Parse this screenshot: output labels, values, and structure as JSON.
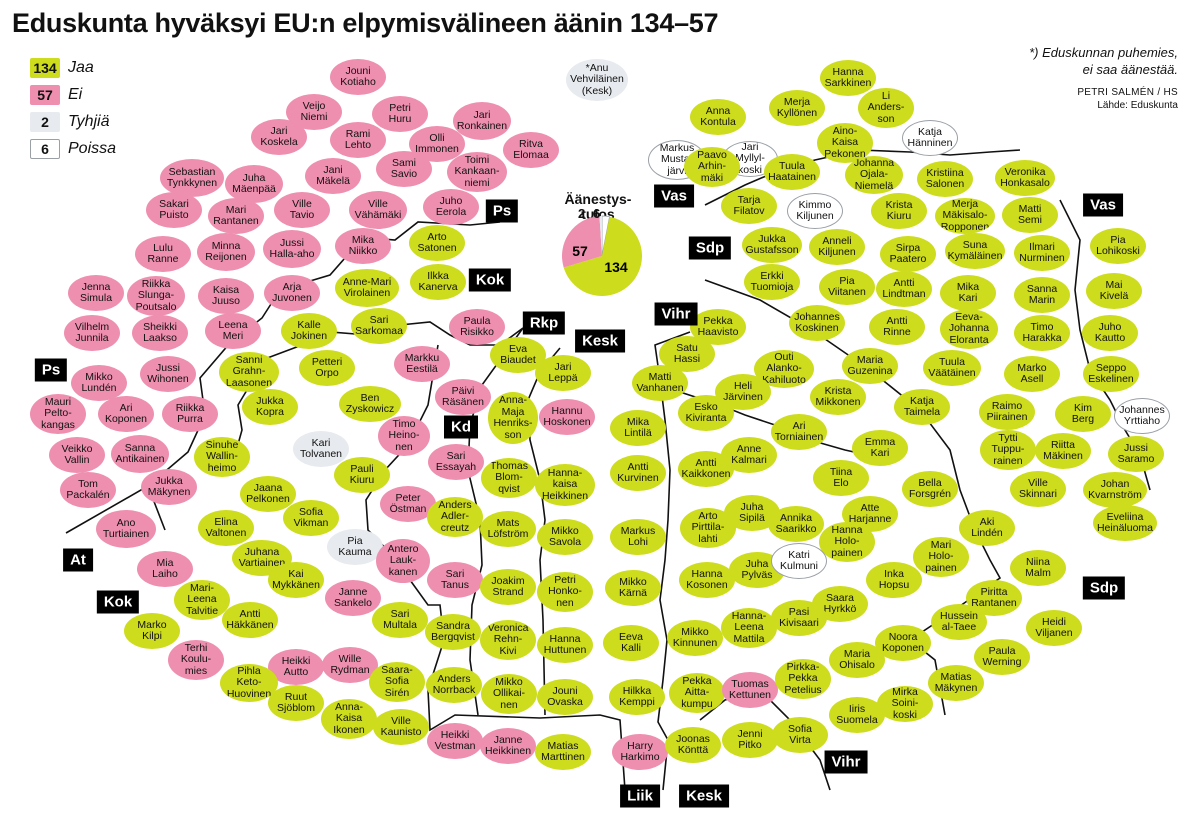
{
  "title": "Eduskunta hyväksyi EU:n elpymisvälineen äänin 134–57",
  "legend": [
    {
      "count": "134",
      "label": "Jaa",
      "type": "jaa"
    },
    {
      "count": "57",
      "label": "Ei",
      "type": "ei"
    },
    {
      "count": "2",
      "label": "Tyhjiä",
      "type": "tyhja"
    },
    {
      "count": "6",
      "label": "Poissa",
      "type": "poissa"
    }
  ],
  "note": "*) Eduskunnan puhemies,\nei saa äänestää.",
  "credit": {
    "author": "PETRI SALMÉN / HS",
    "source": "Lähde: Eduskunta"
  },
  "colors": {
    "jaa": "#cddc1c",
    "ei": "#ee8fb0",
    "tyhja": "#e7eaee",
    "poissa": "#ffffff"
  },
  "results": {
    "label": "Äänestys-\ntulos",
    "jaa": 134,
    "ei": 57,
    "tyhja": 2,
    "poissa": 6,
    "jaa_label": "134",
    "ei_label": "57",
    "tyhja_label": "2",
    "poissa_label": "6"
  },
  "parties": [
    "Ps",
    "Kok",
    "Rkp",
    "Kesk",
    "Vihr",
    "Vas",
    "Sdp",
    "Kd",
    "At",
    "Kok",
    "Liik",
    "Kesk",
    "Vihr",
    "Sdp",
    "Vas",
    "Ps"
  ],
  "seats": [
    {
      "name": "*Anu\nVehviläinen\n(Kesk)",
      "vote": "tyhja"
    },
    {
      "name": "Jouni\nKotiaho",
      "vote": "ei"
    },
    {
      "name": "Veijo\nNiemi",
      "vote": "ei"
    },
    {
      "name": "Petri\nHuru",
      "vote": "ei"
    },
    {
      "name": "Jari\nRonkainen",
      "vote": "ei"
    },
    {
      "name": "Jari\nKoskela",
      "vote": "ei"
    },
    {
      "name": "Rami\nLehto",
      "vote": "ei"
    },
    {
      "name": "Olli\nImmonen",
      "vote": "ei"
    },
    {
      "name": "Ritva\nElomaa",
      "vote": "ei"
    },
    {
      "name": "Juha\nMäenpää",
      "vote": "ei"
    },
    {
      "name": "Jani\nMäkelä",
      "vote": "ei"
    },
    {
      "name": "Sami\nSavio",
      "vote": "ei"
    },
    {
      "name": "Toimi\nKankaan-\nniemi",
      "vote": "ei"
    },
    {
      "name": "Sebastian\nTynkkynen",
      "vote": "ei"
    },
    {
      "name": "Sakari\nPuisto",
      "vote": "ei"
    },
    {
      "name": "Mari\nRantanen",
      "vote": "ei"
    },
    {
      "name": "Ville\nTavio",
      "vote": "ei"
    },
    {
      "name": "Ville\nVähämäki",
      "vote": "ei"
    },
    {
      "name": "Juho\nEerola",
      "vote": "ei"
    },
    {
      "name": "Lulu\nRanne",
      "vote": "ei"
    },
    {
      "name": "Minna\nReijonen",
      "vote": "ei"
    },
    {
      "name": "Jussi\nHalla-aho",
      "vote": "ei"
    },
    {
      "name": "Mika\nNiikko",
      "vote": "ei"
    },
    {
      "name": "Arto\nSatonen",
      "vote": "jaa"
    },
    {
      "name": "Jenna\nSimula",
      "vote": "ei"
    },
    {
      "name": "Riikka\nSlunga-\nPoutsalo",
      "vote": "ei"
    },
    {
      "name": "Kaisa\nJuuso",
      "vote": "ei"
    },
    {
      "name": "Arja\nJuvonen",
      "vote": "ei"
    },
    {
      "name": "Anne-Mari\nVirolainen",
      "vote": "jaa"
    },
    {
      "name": "Ilkka\nKanerva",
      "vote": "jaa"
    },
    {
      "name": "Vilhelm\nJunnila",
      "vote": "ei"
    },
    {
      "name": "Sheikki\nLaakso",
      "vote": "ei"
    },
    {
      "name": "Leena\nMeri",
      "vote": "ei"
    },
    {
      "name": "Kalle\nJokinen",
      "vote": "jaa"
    },
    {
      "name": "Sari\nSarkomaa",
      "vote": "jaa"
    },
    {
      "name": "Paula\nRisikko",
      "vote": "ei"
    },
    {
      "name": "Mikko\nLundén",
      "vote": "ei"
    },
    {
      "name": "Jussi\nWihonen",
      "vote": "ei"
    },
    {
      "name": "Sanni\nGrahn-\nLaasonen",
      "vote": "jaa"
    },
    {
      "name": "Petteri\nOrpo",
      "vote": "jaa"
    },
    {
      "name": "Markku\nEestilä",
      "vote": "ei"
    },
    {
      "name": "Eva\nBiaudet",
      "vote": "jaa"
    },
    {
      "name": "Mauri\nPelto-\nkangas",
      "vote": "ei"
    },
    {
      "name": "Ari\nKoponen",
      "vote": "ei"
    },
    {
      "name": "Riikka\nPurra",
      "vote": "ei"
    },
    {
      "name": "Jukka\nKopra",
      "vote": "jaa"
    },
    {
      "name": "Ben\nZyskowicz",
      "vote": "jaa"
    },
    {
      "name": "Päivi\nRäsänen",
      "vote": "ei"
    },
    {
      "name": "Anna-\nMaja\nHenriks-\nson",
      "vote": "jaa"
    },
    {
      "name": "Jari\nLeppä",
      "vote": "jaa"
    },
    {
      "name": "Veikko\nVallin",
      "vote": "ei"
    },
    {
      "name": "Sanna\nAntikainen",
      "vote": "ei"
    },
    {
      "name": "Sinuhe\nWallin-\nheimo",
      "vote": "jaa"
    },
    {
      "name": "Kari\nTolvanen",
      "vote": "tyhja"
    },
    {
      "name": "Timo\nHeino-\nnen",
      "vote": "ei"
    },
    {
      "name": "Hannu\nHoskonen",
      "vote": "ei"
    },
    {
      "name": "Tom\nPackalén",
      "vote": "ei"
    },
    {
      "name": "Jukka\nMäkynen",
      "vote": "ei"
    },
    {
      "name": "Pauli\nKiuru",
      "vote": "jaa"
    },
    {
      "name": "Sari\nEssayah",
      "vote": "ei"
    },
    {
      "name": "Thomas\nBlom-\nqvist",
      "vote": "jaa"
    },
    {
      "name": "Hanna-\nkaisa\nHeikkinen",
      "vote": "jaa"
    },
    {
      "name": "Ano\nTurtiainen",
      "vote": "ei"
    },
    {
      "name": "Jaana\nPelkonen",
      "vote": "jaa"
    },
    {
      "name": "Sofia\nVikman",
      "vote": "jaa"
    },
    {
      "name": "Peter\nÖstman",
      "vote": "ei"
    },
    {
      "name": "Anders\nAdler-\ncreutz",
      "vote": "jaa"
    },
    {
      "name": "Mats\nLöfström",
      "vote": "jaa"
    },
    {
      "name": "Mikko\nSavola",
      "vote": "jaa"
    },
    {
      "name": "Elina\nValtonen",
      "vote": "jaa"
    },
    {
      "name": "Juhana\nVartiainen",
      "vote": "jaa"
    },
    {
      "name": "Pia\nKauma",
      "vote": "tyhja"
    },
    {
      "name": "Antero\nLauk-\nkanen",
      "vote": "ei"
    },
    {
      "name": "Sari\nTanus",
      "vote": "ei"
    },
    {
      "name": "Joakim\nStrand",
      "vote": "jaa"
    },
    {
      "name": "Petri\nHonko-\nnen",
      "vote": "jaa"
    },
    {
      "name": "Mia\nLaiho",
      "vote": "ei"
    },
    {
      "name": "Mari-\nLeena\nTalvitie",
      "vote": "jaa"
    },
    {
      "name": "Kai\nMykkänen",
      "vote": "jaa"
    },
    {
      "name": "Janne\nSankelo",
      "vote": "ei"
    },
    {
      "name": "Marko\nKilpi",
      "vote": "jaa"
    },
    {
      "name": "Antti\nHäkkänen",
      "vote": "jaa"
    },
    {
      "name": "Sari\nMultala",
      "vote": "jaa"
    },
    {
      "name": "Sandra\nBergqvist",
      "vote": "jaa"
    },
    {
      "name": "Veronica\nRehn-\nKivi",
      "vote": "jaa"
    },
    {
      "name": "Hanna\nHuttunen",
      "vote": "jaa"
    },
    {
      "name": "Terhi\nKoulu-\nmies",
      "vote": "ei"
    },
    {
      "name": "Heikki\nAutto",
      "vote": "ei"
    },
    {
      "name": "Wille\nRydman",
      "vote": "ei"
    },
    {
      "name": "Pihla\nKeto-\nHuovinen",
      "vote": "jaa"
    },
    {
      "name": "Saara-\nSofia\nSirén",
      "vote": "jaa"
    },
    {
      "name": "Anders\nNorrback",
      "vote": "jaa"
    },
    {
      "name": "Mikko\nOllikai-\nnen",
      "vote": "jaa"
    },
    {
      "name": "Jouni\nOvaska",
      "vote": "jaa"
    },
    {
      "name": "Ruut\nSjöblom",
      "vote": "jaa"
    },
    {
      "name": "Anna-\nKaisa\nIkonen",
      "vote": "jaa"
    },
    {
      "name": "Ville\nKaunisto",
      "vote": "jaa"
    },
    {
      "name": "Heikki\nVestman",
      "vote": "ei"
    },
    {
      "name": "Janne\nHeikkinen",
      "vote": "ei"
    },
    {
      "name": "Matias\nMarttinen",
      "vote": "jaa"
    },
    {
      "name": "Harry\nHarkimo",
      "vote": "ei"
    },
    {
      "name": "Hanna\nSarkkinen",
      "vote": "jaa"
    },
    {
      "name": "Li\nAnders-\nson",
      "vote": "jaa"
    },
    {
      "name": "Anna\nKontula",
      "vote": "jaa"
    },
    {
      "name": "Merja\nKyllönen",
      "vote": "jaa"
    },
    {
      "name": "Aino-\nKaisa\nPekonen",
      "vote": "jaa"
    },
    {
      "name": "Markus\nMusta-\njärvi",
      "vote": "poissa"
    },
    {
      "name": "Jari\nMyllyl-\nkoski",
      "vote": "poissa"
    },
    {
      "name": "Katja\nHänninen",
      "vote": "poissa"
    },
    {
      "name": "Paavo\nArhin-\nmäki",
      "vote": "jaa"
    },
    {
      "name": "Tuula\nHaatainen",
      "vote": "jaa"
    },
    {
      "name": "Johanna\nOjala-\nNiemelä",
      "vote": "jaa"
    },
    {
      "name": "Kristiina\nSalonen",
      "vote": "jaa"
    },
    {
      "name": "Veronika\nHonkasalo",
      "vote": "jaa"
    },
    {
      "name": "Tarja\nFilatov",
      "vote": "jaa"
    },
    {
      "name": "Kimmo\nKiljunen",
      "vote": "poissa"
    },
    {
      "name": "Krista\nKiuru",
      "vote": "jaa"
    },
    {
      "name": "Merja\nMäkisalo-\nRopponen",
      "vote": "jaa"
    },
    {
      "name": "Matti\nSemi",
      "vote": "jaa"
    },
    {
      "name": "Jukka\nGustafsson",
      "vote": "jaa"
    },
    {
      "name": "Anneli\nKiljunen",
      "vote": "jaa"
    },
    {
      "name": "Sirpa\nPaatero",
      "vote": "jaa"
    },
    {
      "name": "Suna\nKymäläinen",
      "vote": "jaa"
    },
    {
      "name": "Ilmari\nNurminen",
      "vote": "jaa"
    },
    {
      "name": "Pia\nLohikoski",
      "vote": "jaa"
    },
    {
      "name": "Erkki\nTuomioja",
      "vote": "jaa"
    },
    {
      "name": "Pia\nViitanen",
      "vote": "jaa"
    },
    {
      "name": "Antti\nLindtman",
      "vote": "jaa"
    },
    {
      "name": "Mika\nKari",
      "vote": "jaa"
    },
    {
      "name": "Sanna\nMarin",
      "vote": "jaa"
    },
    {
      "name": "Mai\nKivelä",
      "vote": "jaa"
    },
    {
      "name": "Pekka\nHaavisto",
      "vote": "jaa"
    },
    {
      "name": "Johannes\nKoskinen",
      "vote": "jaa"
    },
    {
      "name": "Antti\nRinne",
      "vote": "jaa"
    },
    {
      "name": "Eeva-\nJohanna\nEloranta",
      "vote": "jaa"
    },
    {
      "name": "Timo\nHarakka",
      "vote": "jaa"
    },
    {
      "name": "Juho\nKautto",
      "vote": "jaa"
    },
    {
      "name": "Satu\nHassi",
      "vote": "jaa"
    },
    {
      "name": "Outi\nAlanko-\nKahiluoto",
      "vote": "jaa"
    },
    {
      "name": "Maria\nGuzenina",
      "vote": "jaa"
    },
    {
      "name": "Tuula\nVäätäinen",
      "vote": "jaa"
    },
    {
      "name": "Marko\nAsell",
      "vote": "jaa"
    },
    {
      "name": "Seppo\nEskelinen",
      "vote": "jaa"
    },
    {
      "name": "Matti\nVanhanen",
      "vote": "jaa"
    },
    {
      "name": "Heli\nJärvinen",
      "vote": "jaa"
    },
    {
      "name": "Krista\nMikkonen",
      "vote": "jaa"
    },
    {
      "name": "Katja\nTaimela",
      "vote": "jaa"
    },
    {
      "name": "Raimo\nPiirainen",
      "vote": "jaa"
    },
    {
      "name": "Kim\nBerg",
      "vote": "jaa"
    },
    {
      "name": "Johannes\nYrttiaho",
      "vote": "poissa"
    },
    {
      "name": "Mika\nLintilä",
      "vote": "jaa"
    },
    {
      "name": "Esko\nKiviranta",
      "vote": "jaa"
    },
    {
      "name": "Ari\nTorniainen",
      "vote": "jaa"
    },
    {
      "name": "Emma\nKari",
      "vote": "jaa"
    },
    {
      "name": "Tytti\nTuppu-\nrainen",
      "vote": "jaa"
    },
    {
      "name": "Riitta\nMäkinen",
      "vote": "jaa"
    },
    {
      "name": "Jussi\nSaramo",
      "vote": "jaa"
    },
    {
      "name": "Antti\nKurvinen",
      "vote": "jaa"
    },
    {
      "name": "Antti\nKaikkonen",
      "vote": "jaa"
    },
    {
      "name": "Anne\nKalmari",
      "vote": "jaa"
    },
    {
      "name": "Tiina\nElo",
      "vote": "jaa"
    },
    {
      "name": "Bella\nForsgrén",
      "vote": "jaa"
    },
    {
      "name": "Ville\nSkinnari",
      "vote": "jaa"
    },
    {
      "name": "Johan\nKvarnström",
      "vote": "jaa"
    },
    {
      "name": "Markus\nLohi",
      "vote": "jaa"
    },
    {
      "name": "Arto\nPirttila-\nlahti",
      "vote": "jaa"
    },
    {
      "name": "Juha\nSipilä",
      "vote": "jaa"
    },
    {
      "name": "Annika\nSaarikko",
      "vote": "jaa"
    },
    {
      "name": "Atte\nHarjanne",
      "vote": "jaa"
    },
    {
      "name": "Aki\nLindén",
      "vote": "jaa"
    },
    {
      "name": "Eveliina\nHeinäluoma",
      "vote": "jaa"
    },
    {
      "name": "Hanna\nHolo-\npainen",
      "vote": "jaa"
    },
    {
      "name": "Mari\nHolo-\npainen",
      "vote": "jaa"
    },
    {
      "name": "Mikko\nKärnä",
      "vote": "jaa"
    },
    {
      "name": "Hanna\nKosonen",
      "vote": "jaa"
    },
    {
      "name": "Juha\nPylväs",
      "vote": "jaa"
    },
    {
      "name": "Katri\nKulmuni",
      "vote": "poissa"
    },
    {
      "name": "Inka\nHopsu",
      "vote": "jaa"
    },
    {
      "name": "Niina\nMalm",
      "vote": "jaa"
    },
    {
      "name": "Saara\nHyrkkö",
      "vote": "jaa"
    },
    {
      "name": "Piritta\nRantanen",
      "vote": "jaa"
    },
    {
      "name": "Eeva\nKalli",
      "vote": "jaa"
    },
    {
      "name": "Mikko\nKinnunen",
      "vote": "jaa"
    },
    {
      "name": "Hanna-\nLeena\nMattila",
      "vote": "jaa"
    },
    {
      "name": "Pasi\nKivisaari",
      "vote": "jaa"
    },
    {
      "name": "Hussein\nal-Taee",
      "vote": "jaa"
    },
    {
      "name": "Heidi\nViljanen",
      "vote": "jaa"
    },
    {
      "name": "Noora\nKoponen",
      "vote": "jaa"
    },
    {
      "name": "Paula\nWerning",
      "vote": "jaa"
    },
    {
      "name": "Hilkka\nKemppi",
      "vote": "jaa"
    },
    {
      "name": "Pekka\nAitta-\nkumpu",
      "vote": "jaa"
    },
    {
      "name": "Tuomas\nKettunen",
      "vote": "ei"
    },
    {
      "name": "Pirkka-\nPekka\nPetelius",
      "vote": "jaa"
    },
    {
      "name": "Maria\nOhisalo",
      "vote": "jaa"
    },
    {
      "name": "Matias\nMäkynen",
      "vote": "jaa"
    },
    {
      "name": "Mirka\nSoini-\nkoski",
      "vote": "jaa"
    },
    {
      "name": "Joonas\nKönttä",
      "vote": "jaa"
    },
    {
      "name": "Jenni\nPitko",
      "vote": "jaa"
    },
    {
      "name": "Sofia\nVirta",
      "vote": "jaa"
    },
    {
      "name": "Iiris\nSuomela",
      "vote": "jaa"
    }
  ]
}
